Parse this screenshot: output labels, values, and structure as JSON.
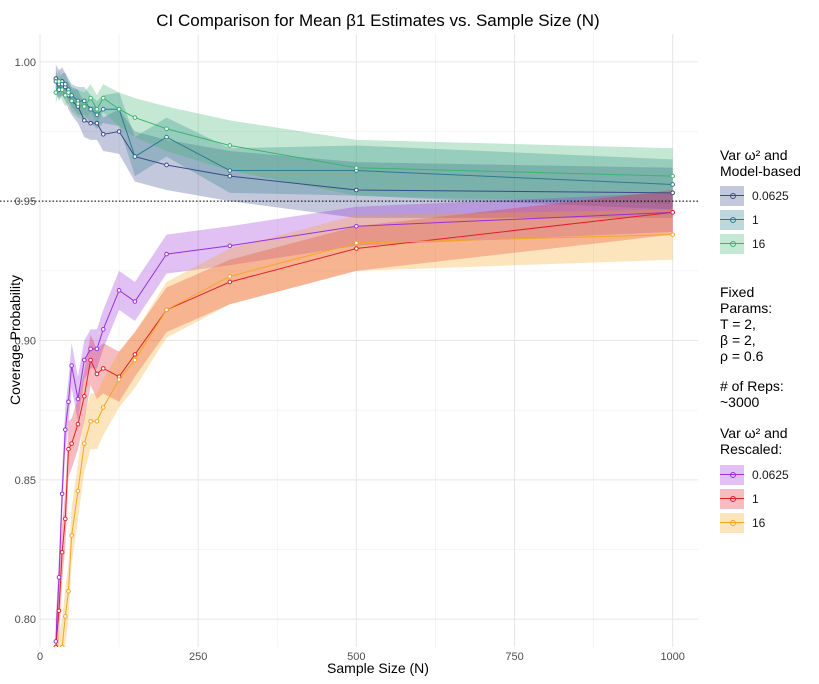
{
  "chart_data": {
    "type": "line",
    "title": "CI Comparison for Mean β1 Estimates vs. Sample Size (N)",
    "xlabel": "Sample Size (N)",
    "ylabel": "Coverage Probability",
    "xlim": [
      0,
      1040
    ],
    "ylim": [
      0.79,
      1.01
    ],
    "xticks": [
      0,
      250,
      500,
      750,
      1000
    ],
    "yticks": [
      0.8,
      0.85,
      0.9,
      0.95,
      1.0
    ],
    "ytick_labels": [
      "0.80",
      "0.85",
      "0.90",
      "0.95",
      "1.00"
    ],
    "reference_line": 0.95,
    "grid": true,
    "x": [
      25,
      30,
      35,
      40,
      45,
      50,
      60,
      70,
      80,
      90,
      100,
      125,
      150,
      200,
      300,
      500,
      1000
    ],
    "series": [
      {
        "name": "0.0625",
        "group": "Model-based",
        "color": "#3b4a8a",
        "values": [
          0.994,
          0.992,
          0.993,
          0.991,
          0.988,
          0.986,
          0.984,
          0.979,
          0.978,
          0.978,
          0.974,
          0.975,
          0.966,
          0.963,
          0.959,
          0.954,
          0.953
        ],
        "band": [
          0.005,
          0.005,
          0.005,
          0.005,
          0.005,
          0.005,
          0.006,
          0.006,
          0.006,
          0.006,
          0.006,
          0.008,
          0.009,
          0.009,
          0.009,
          0.01,
          0.009
        ]
      },
      {
        "name": "1",
        "group": "Model-based",
        "color": "#2a7d8e",
        "values": [
          0.993,
          0.99,
          0.992,
          0.992,
          0.99,
          0.988,
          0.986,
          0.986,
          0.983,
          0.981,
          0.983,
          0.983,
          0.966,
          0.973,
          0.961,
          0.961,
          0.956
        ],
        "band": [
          0.004,
          0.004,
          0.004,
          0.004,
          0.004,
          0.004,
          0.005,
          0.005,
          0.005,
          0.005,
          0.005,
          0.006,
          0.007,
          0.007,
          0.008,
          0.009,
          0.009
        ]
      },
      {
        "name": "16",
        "group": "Model-based",
        "color": "#3cb371",
        "values": [
          0.989,
          0.993,
          0.99,
          0.988,
          0.989,
          0.986,
          0.985,
          0.984,
          0.987,
          0.983,
          0.987,
          0.983,
          0.98,
          0.976,
          0.97,
          0.962,
          0.959
        ],
        "band": [
          0.004,
          0.004,
          0.004,
          0.004,
          0.004,
          0.004,
          0.005,
          0.005,
          0.005,
          0.005,
          0.005,
          0.006,
          0.007,
          0.008,
          0.009,
          0.01,
          0.01
        ]
      },
      {
        "name": "0.0625",
        "group": "Rescaled",
        "color": "#9b30d9",
        "values": [
          0.792,
          0.815,
          0.845,
          0.868,
          0.878,
          0.891,
          0.879,
          0.893,
          0.897,
          0.897,
          0.904,
          0.918,
          0.914,
          0.931,
          0.934,
          0.941,
          0.946
        ],
        "band": [
          0.008,
          0.008,
          0.008,
          0.008,
          0.008,
          0.008,
          0.008,
          0.007,
          0.007,
          0.007,
          0.007,
          0.007,
          0.007,
          0.007,
          0.007,
          0.007,
          0.007
        ]
      },
      {
        "name": "1",
        "group": "Rescaled",
        "color": "#e0202a",
        "values": [
          0.79,
          0.803,
          0.824,
          0.836,
          0.861,
          0.863,
          0.87,
          0.88,
          0.893,
          0.888,
          0.89,
          0.887,
          0.895,
          0.911,
          0.921,
          0.933,
          0.946
        ],
        "band": [
          0.01,
          0.01,
          0.01,
          0.01,
          0.01,
          0.009,
          0.009,
          0.009,
          0.009,
          0.009,
          0.009,
          0.009,
          0.008,
          0.008,
          0.008,
          0.008,
          0.008
        ]
      },
      {
        "name": "16",
        "group": "Rescaled",
        "color": "#f5a623",
        "values": [
          0.78,
          0.785,
          0.79,
          0.801,
          0.81,
          0.83,
          0.846,
          0.863,
          0.871,
          0.871,
          0.876,
          0.886,
          0.893,
          0.911,
          0.923,
          0.935,
          0.938
        ],
        "band": [
          0.01,
          0.01,
          0.01,
          0.01,
          0.01,
          0.01,
          0.01,
          0.01,
          0.01,
          0.01,
          0.01,
          0.01,
          0.01,
          0.01,
          0.01,
          0.01,
          0.009
        ]
      }
    ],
    "legend": {
      "model_title": "Var ω² and\nModel-based",
      "model_items": [
        {
          "label": "0.0625",
          "fill": "#3b4a8a",
          "line": "#3b4a8a"
        },
        {
          "label": "1",
          "fill": "#2a7d8e",
          "line": "#2a7d8e"
        },
        {
          "label": "16",
          "fill": "#3cb371",
          "line": "#3cb371"
        }
      ],
      "fixed_params": [
        "Fixed",
        "Params:",
        "T = 2,",
        "β = 2,",
        "ρ = 0.6"
      ],
      "reps": [
        "# of Reps:",
        "~3000"
      ],
      "rescaled_title": "Var ω² and\nRescaled:",
      "rescaled_items": [
        {
          "label": "0.0625",
          "fill": "#9b30d9",
          "line": "#9b30d9"
        },
        {
          "label": "1",
          "fill": "#e0202a",
          "line": "#e0202a"
        },
        {
          "label": "16",
          "fill": "#f5a623",
          "line": "#f5a623"
        }
      ]
    }
  }
}
